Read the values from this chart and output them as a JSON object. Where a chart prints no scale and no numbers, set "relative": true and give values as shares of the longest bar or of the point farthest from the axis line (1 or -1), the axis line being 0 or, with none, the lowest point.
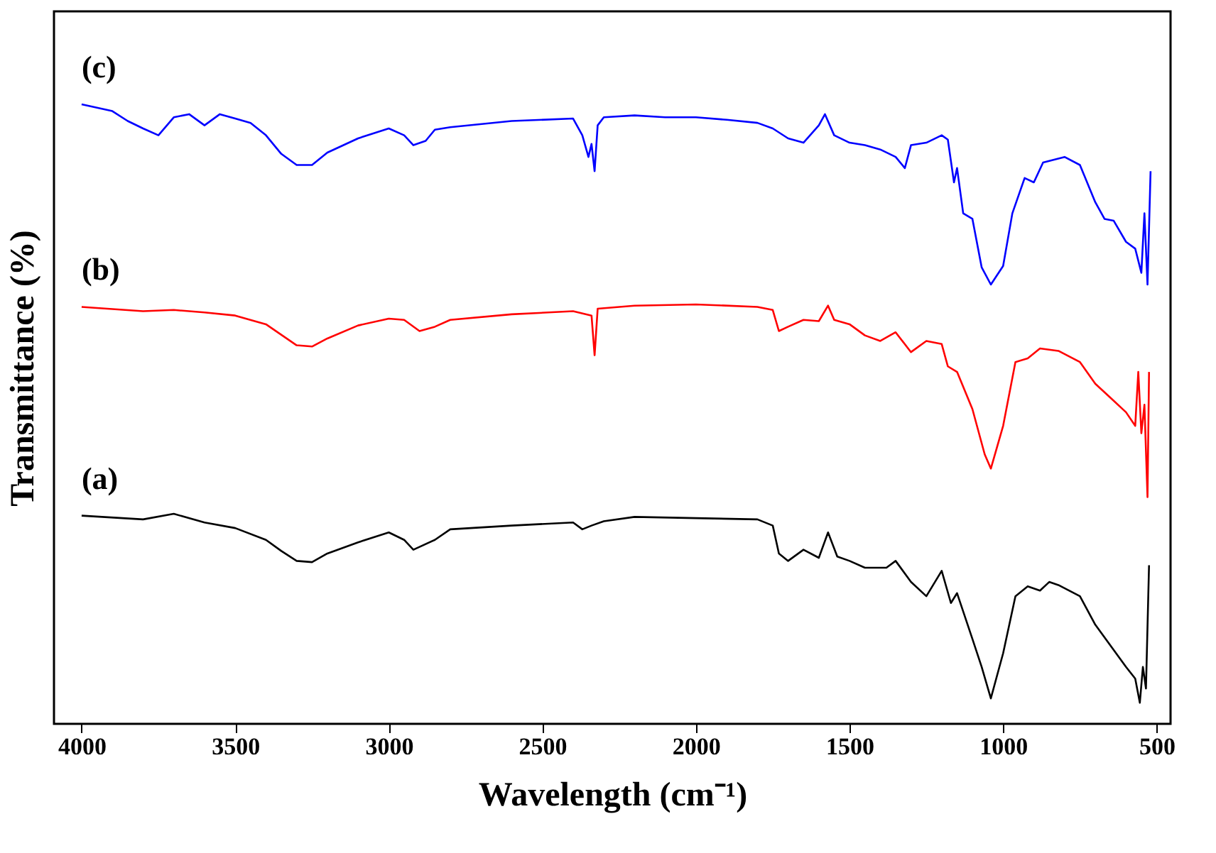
{
  "chart_data": {
    "type": "line",
    "relative": true,
    "xlabel": "Wavelength (cm⁻¹)",
    "ylabel": "Transmittance (%)",
    "xlim": [
      4090,
      455
    ],
    "xticks": [
      4000,
      3500,
      3000,
      2500,
      2000,
      1500,
      1000,
      500
    ],
    "grid": false,
    "line_style": "solid",
    "x": [
      4000,
      3800,
      3700,
      3600,
      3500,
      3400,
      3350,
      3300,
      3250,
      3200,
      3100,
      3000,
      2950,
      2920,
      2850,
      2800,
      2600,
      2400,
      2370,
      2340,
      2300,
      2200,
      2000,
      1800,
      1750,
      1730,
      1700,
      1650,
      1600,
      1570,
      1540,
      1500,
      1450,
      1400,
      1380,
      1350,
      1300,
      1250,
      1200,
      1170,
      1150,
      1100,
      1070,
      1040,
      1000,
      960,
      920,
      880,
      850,
      820,
      750,
      700,
      650,
      600,
      570,
      555,
      545,
      535,
      525
    ],
    "series": [
      {
        "name": "(a)",
        "color": "#000000",
        "values": [
          0.336,
          0.33,
          0.339,
          0.325,
          0.316,
          0.297,
          0.279,
          0.263,
          0.261,
          0.275,
          0.293,
          0.309,
          0.297,
          0.281,
          0.297,
          0.314,
          0.32,
          0.325,
          0.314,
          0.32,
          0.327,
          0.334,
          0.332,
          0.33,
          0.32,
          0.275,
          0.263,
          0.281,
          0.268,
          0.309,
          0.27,
          0.263,
          0.252,
          0.252,
          0.252,
          0.263,
          0.229,
          0.206,
          0.247,
          0.195,
          0.211,
          0.137,
          0.092,
          0.041,
          0.114,
          0.206,
          0.222,
          0.215,
          0.229,
          0.224,
          0.206,
          0.16,
          0.126,
          0.092,
          0.073,
          0.034,
          0.092,
          0.057,
          0.256
        ]
      },
      {
        "name": "(b)",
        "color": "#ff0000",
        "x": [
          4000,
          3800,
          3700,
          3600,
          3500,
          3400,
          3300,
          3250,
          3200,
          3100,
          3000,
          2950,
          2900,
          2850,
          2800,
          2600,
          2400,
          2340,
          2330,
          2320,
          2200,
          2000,
          1800,
          1750,
          1730,
          1700,
          1650,
          1600,
          1570,
          1550,
          1500,
          1450,
          1400,
          1350,
          1300,
          1250,
          1200,
          1180,
          1150,
          1100,
          1060,
          1040,
          1000,
          960,
          920,
          880,
          820,
          750,
          700,
          650,
          600,
          570,
          560,
          550,
          540,
          530,
          525
        ],
        "values": [
          0.673,
          0.666,
          0.668,
          0.664,
          0.659,
          0.645,
          0.611,
          0.609,
          0.622,
          0.643,
          0.654,
          0.652,
          0.634,
          0.641,
          0.652,
          0.661,
          0.666,
          0.659,
          0.595,
          0.67,
          0.675,
          0.677,
          0.673,
          0.668,
          0.634,
          0.641,
          0.652,
          0.65,
          0.675,
          0.652,
          0.645,
          0.627,
          0.618,
          0.632,
          0.6,
          0.618,
          0.613,
          0.577,
          0.568,
          0.508,
          0.435,
          0.412,
          0.481,
          0.584,
          0.59,
          0.606,
          0.602,
          0.584,
          0.549,
          0.526,
          0.503,
          0.481,
          0.568,
          0.469,
          0.515,
          0.366,
          0.568
        ]
      },
      {
        "name": "(c)",
        "color": "#0000ff",
        "x": [
          4000,
          3900,
          3850,
          3800,
          3750,
          3700,
          3650,
          3600,
          3550,
          3500,
          3450,
          3400,
          3350,
          3300,
          3250,
          3200,
          3100,
          3000,
          2950,
          2920,
          2880,
          2850,
          2800,
          2600,
          2400,
          2370,
          2350,
          2340,
          2330,
          2320,
          2300,
          2200,
          2100,
          2000,
          1900,
          1800,
          1750,
          1700,
          1650,
          1600,
          1580,
          1550,
          1500,
          1450,
          1400,
          1350,
          1320,
          1300,
          1250,
          1200,
          1180,
          1160,
          1150,
          1130,
          1100,
          1070,
          1040,
          1000,
          970,
          930,
          900,
          870,
          800,
          750,
          700,
          670,
          640,
          600,
          570,
          550,
          540,
          530,
          520
        ],
        "values": [
          1.0,
          0.989,
          0.973,
          0.961,
          0.95,
          0.979,
          0.984,
          0.966,
          0.984,
          0.977,
          0.97,
          0.95,
          0.92,
          0.902,
          0.902,
          0.922,
          0.945,
          0.961,
          0.95,
          0.934,
          0.941,
          0.959,
          0.963,
          0.973,
          0.977,
          0.95,
          0.915,
          0.936,
          0.892,
          0.966,
          0.979,
          0.982,
          0.979,
          0.979,
          0.975,
          0.97,
          0.961,
          0.945,
          0.938,
          0.966,
          0.984,
          0.95,
          0.938,
          0.934,
          0.927,
          0.915,
          0.897,
          0.934,
          0.938,
          0.95,
          0.943,
          0.874,
          0.897,
          0.824,
          0.815,
          0.737,
          0.709,
          0.739,
          0.824,
          0.881,
          0.874,
          0.906,
          0.915,
          0.902,
          0.842,
          0.815,
          0.812,
          0.778,
          0.767,
          0.728,
          0.824,
          0.709,
          0.892
        ]
      }
    ]
  }
}
